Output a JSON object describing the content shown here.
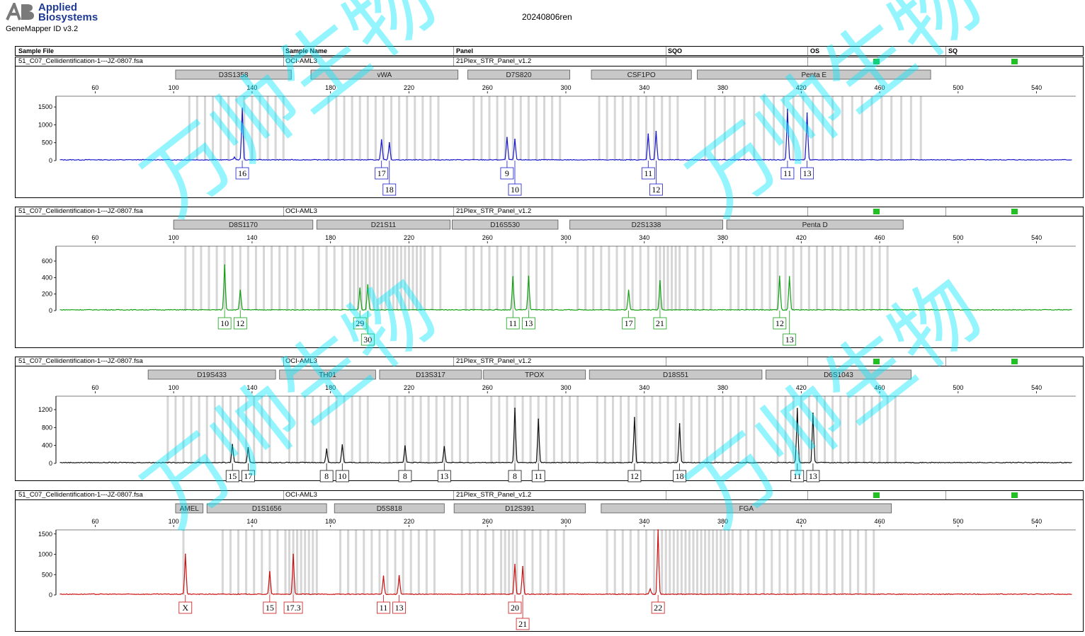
{
  "brand": {
    "name_line1": "Applied",
    "name_line2": "Biosystems",
    "version": "GeneMapper ID v3.2"
  },
  "run_title": "20240806ren",
  "header": {
    "sample_file": "Sample File",
    "sample_name": "Sample Name",
    "panel": "Panel",
    "sqo": "SQO",
    "os": "OS",
    "sq": "SQ"
  },
  "sample": {
    "file": "51_C07_Cellidentification-1---JZ-0807.fsa",
    "name": "OCI-AML3",
    "panel": "21Plex_STR_Panel_v1.2"
  },
  "x_axis": {
    "ticks": [
      60,
      100,
      140,
      180,
      220,
      260,
      300,
      340,
      380,
      420,
      460,
      500,
      540
    ]
  },
  "watermark": "万帅生物",
  "colors": {
    "blue": "#1a1acc",
    "green": "#13a013",
    "black": "#111111",
    "red": "#cc1111",
    "quality_ok": "#22c022",
    "marker_box": "#c8c8c8",
    "bin": "#d6d6d6"
  },
  "chart_data": [
    {
      "type": "line",
      "color": "blue",
      "dye": "blue",
      "ylim": [
        0,
        1800
      ],
      "yticks": [
        0,
        500,
        1000,
        1500
      ],
      "markers": [
        {
          "name": "D3S1358",
          "range": [
            101,
            160
          ]
        },
        {
          "name": "vWA",
          "range": [
            170,
            245
          ]
        },
        {
          "name": "D7S820",
          "range": [
            250,
            302
          ]
        },
        {
          "name": "CSF1PO",
          "range": [
            313,
            364
          ]
        },
        {
          "name": "Penta E",
          "range": [
            367,
            486
          ]
        }
      ],
      "bins": [
        108,
        112,
        116,
        120,
        124,
        128,
        132,
        136,
        140,
        144,
        148,
        152,
        156,
        179,
        183,
        187,
        191,
        195,
        199,
        203,
        207,
        211,
        215,
        219,
        223,
        227,
        231,
        235,
        253,
        257,
        261,
        265,
        269,
        273,
        277,
        281,
        285,
        289,
        293,
        297,
        317,
        321,
        325,
        329,
        333,
        337,
        341,
        345,
        349,
        353,
        357,
        371,
        376,
        381,
        386,
        391,
        396,
        401,
        406,
        411,
        416,
        421,
        426,
        431,
        436,
        441,
        446,
        451,
        456,
        461,
        466,
        471,
        476,
        481
      ],
      "peaks": [
        {
          "x": 135,
          "y": 1450
        },
        {
          "x": 131,
          "y": 80
        },
        {
          "x": 206,
          "y": 570
        },
        {
          "x": 210,
          "y": 500
        },
        {
          "x": 270,
          "y": 640
        },
        {
          "x": 274,
          "y": 580
        },
        {
          "x": 342,
          "y": 740
        },
        {
          "x": 346,
          "y": 810
        },
        {
          "x": 413,
          "y": 1430
        },
        {
          "x": 423,
          "y": 1330
        }
      ],
      "alleles": [
        {
          "label": "16",
          "x": 135,
          "row": 0
        },
        {
          "label": "17",
          "x": 206,
          "row": 0
        },
        {
          "label": "18",
          "x": 210,
          "row": 1
        },
        {
          "label": "9",
          "x": 270,
          "row": 0
        },
        {
          "label": "10",
          "x": 274,
          "row": 1
        },
        {
          "label": "11",
          "x": 342,
          "row": 0
        },
        {
          "label": "12",
          "x": 346,
          "row": 1
        },
        {
          "label": "11",
          "x": 413,
          "row": 0
        },
        {
          "label": "13",
          "x": 423,
          "row": 0
        }
      ]
    },
    {
      "type": "line",
      "color": "green",
      "dye": "green",
      "ylim": [
        0,
        780
      ],
      "yticks": [
        0,
        200,
        400,
        600
      ],
      "markers": [
        {
          "name": "D8S1170",
          "range": [
            100,
            171
          ]
        },
        {
          "name": "D21S11",
          "range": [
            173,
            241
          ]
        },
        {
          "name": "D16S530",
          "range": [
            242,
            296
          ]
        },
        {
          "name": "D2S1338",
          "range": [
            302,
            380
          ]
        },
        {
          "name": "Penta D",
          "range": [
            382,
            472
          ]
        }
      ],
      "bins": [
        106,
        110,
        114,
        118,
        122,
        126,
        130,
        134,
        138,
        142,
        146,
        150,
        154,
        158,
        162,
        166,
        174,
        178,
        182,
        186,
        190,
        192,
        194,
        196,
        198,
        200,
        202,
        204,
        206,
        208,
        210,
        212,
        214,
        216,
        218,
        220,
        222,
        224,
        226,
        228,
        232,
        236,
        249,
        253,
        257,
        261,
        265,
        269,
        273,
        277,
        281,
        285,
        289,
        293,
        306,
        310,
        314,
        318,
        322,
        326,
        330,
        334,
        338,
        342,
        346,
        348,
        350,
        352,
        354,
        356,
        358,
        362,
        366,
        370,
        374,
        384,
        388,
        392,
        396,
        400,
        404,
        408,
        412,
        416,
        420,
        424,
        428,
        432,
        436,
        440,
        444,
        448,
        452,
        456,
        460,
        464
      ],
      "peaks": [
        {
          "x": 126,
          "y": 550
        },
        {
          "x": 134,
          "y": 245
        },
        {
          "x": 195,
          "y": 270
        },
        {
          "x": 199,
          "y": 310
        },
        {
          "x": 273,
          "y": 410
        },
        {
          "x": 281,
          "y": 410
        },
        {
          "x": 332,
          "y": 240
        },
        {
          "x": 348,
          "y": 360
        },
        {
          "x": 409,
          "y": 410
        },
        {
          "x": 414,
          "y": 410
        }
      ],
      "alleles": [
        {
          "label": "10",
          "x": 126,
          "row": 0
        },
        {
          "label": "12",
          "x": 134,
          "row": 0
        },
        {
          "label": "29",
          "x": 195,
          "row": 0
        },
        {
          "label": "30",
          "x": 199,
          "row": 1
        },
        {
          "label": "11",
          "x": 273,
          "row": 0
        },
        {
          "label": "13",
          "x": 281,
          "row": 0
        },
        {
          "label": "17",
          "x": 332,
          "row": 0
        },
        {
          "label": "21",
          "x": 348,
          "row": 0
        },
        {
          "label": "12",
          "x": 409,
          "row": 0
        },
        {
          "label": "13",
          "x": 414,
          "row": 1
        }
      ]
    },
    {
      "type": "line",
      "color": "black",
      "dye": "yellow",
      "ylim": [
        0,
        1500
      ],
      "yticks": [
        0,
        400,
        800,
        1200
      ],
      "markers": [
        {
          "name": "D19S433",
          "range": [
            87,
            152
          ]
        },
        {
          "name": "TH01",
          "range": [
            154,
            203
          ]
        },
        {
          "name": "D13S317",
          "range": [
            205,
            257
          ]
        },
        {
          "name": "TPOX",
          "range": [
            258,
            310
          ]
        },
        {
          "name": "D18S51",
          "range": [
            312,
            400
          ]
        },
        {
          "name": "D6S1043",
          "range": [
            402,
            476
          ]
        }
      ],
      "bins": [
        97,
        101,
        105,
        109,
        113,
        117,
        121,
        125,
        129,
        133,
        137,
        141,
        145,
        149,
        159,
        163,
        167,
        171,
        175,
        179,
        183,
        187,
        191,
        195,
        199,
        210,
        214,
        218,
        222,
        226,
        230,
        234,
        238,
        242,
        246,
        250,
        262,
        266,
        270,
        274,
        278,
        282,
        286,
        290,
        294,
        298,
        302,
        306,
        316,
        320,
        324,
        328,
        332,
        336,
        340,
        344,
        348,
        352,
        356,
        360,
        364,
        368,
        372,
        376,
        380,
        384,
        388,
        392,
        396,
        408,
        412,
        416,
        420,
        424,
        428,
        432,
        436,
        440,
        444,
        448,
        452,
        456,
        460,
        464,
        468
      ],
      "peaks": [
        {
          "x": 130,
          "y": 420
        },
        {
          "x": 138,
          "y": 350
        },
        {
          "x": 178,
          "y": 310
        },
        {
          "x": 186,
          "y": 410
        },
        {
          "x": 218,
          "y": 380
        },
        {
          "x": 238,
          "y": 370
        },
        {
          "x": 274,
          "y": 1230
        },
        {
          "x": 286,
          "y": 980
        },
        {
          "x": 335,
          "y": 1020
        },
        {
          "x": 358,
          "y": 880
        },
        {
          "x": 418,
          "y": 1220
        },
        {
          "x": 426,
          "y": 1120
        }
      ],
      "alleles": [
        {
          "label": "15",
          "x": 130,
          "row": 0
        },
        {
          "label": "17",
          "x": 138,
          "row": 0
        },
        {
          "label": "8",
          "x": 178,
          "row": 0
        },
        {
          "label": "10",
          "x": 186,
          "row": 0
        },
        {
          "label": "8",
          "x": 218,
          "row": 0
        },
        {
          "label": "13",
          "x": 238,
          "row": 0
        },
        {
          "label": "8",
          "x": 274,
          "row": 0
        },
        {
          "label": "11",
          "x": 286,
          "row": 0
        },
        {
          "label": "12",
          "x": 335,
          "row": 0
        },
        {
          "label": "18",
          "x": 358,
          "row": 0
        },
        {
          "label": "11",
          "x": 418,
          "row": 0
        },
        {
          "label": "13",
          "x": 426,
          "row": 0
        }
      ]
    },
    {
      "type": "line",
      "color": "red",
      "dye": "red",
      "ylim": [
        0,
        1600
      ],
      "yticks": [
        0,
        500,
        1000,
        1500
      ],
      "markers": [
        {
          "name": "AMEL",
          "range": [
            101,
            115
          ]
        },
        {
          "name": "D1S1656",
          "range": [
            117,
            178
          ]
        },
        {
          "name": "D5S818",
          "range": [
            182,
            238
          ]
        },
        {
          "name": "D12S391",
          "range": [
            243,
            310
          ]
        },
        {
          "name": "FGA",
          "range": [
            318,
            466
          ]
        }
      ],
      "bins": [
        105,
        125,
        129,
        133,
        137,
        141,
        145,
        149,
        153,
        157,
        159,
        161,
        163,
        165,
        167,
        169,
        171,
        173,
        185,
        189,
        193,
        197,
        201,
        205,
        209,
        213,
        217,
        221,
        225,
        229,
        233,
        247,
        251,
        255,
        259,
        263,
        267,
        269,
        271,
        273,
        275,
        279,
        283,
        287,
        291,
        295,
        299,
        321,
        325,
        329,
        333,
        337,
        341,
        345,
        349,
        351,
        353,
        355,
        357,
        359,
        361,
        363,
        365,
        367,
        369,
        371,
        373,
        375,
        377,
        379,
        381,
        383,
        385,
        389,
        393,
        397,
        401,
        405,
        409,
        413,
        417,
        421,
        425,
        429,
        433,
        437,
        441,
        445,
        449,
        453,
        457
      ],
      "peaks": [
        {
          "x": 106,
          "y": 1000
        },
        {
          "x": 149,
          "y": 560
        },
        {
          "x": 161,
          "y": 990
        },
        {
          "x": 207,
          "y": 450
        },
        {
          "x": 215,
          "y": 470
        },
        {
          "x": 274,
          "y": 750
        },
        {
          "x": 278,
          "y": 700
        },
        {
          "x": 347,
          "y": 1590
        },
        {
          "x": 343,
          "y": 140
        }
      ],
      "alleles": [
        {
          "label": "X",
          "x": 106,
          "row": 0
        },
        {
          "label": "15",
          "x": 149,
          "row": 0
        },
        {
          "label": "17.3",
          "x": 161,
          "row": 0
        },
        {
          "label": "11",
          "x": 207,
          "row": 0
        },
        {
          "label": "13",
          "x": 215,
          "row": 0
        },
        {
          "label": "20",
          "x": 274,
          "row": 0
        },
        {
          "label": "21",
          "x": 278,
          "row": 1
        },
        {
          "label": "22",
          "x": 347,
          "row": 0
        }
      ]
    }
  ]
}
